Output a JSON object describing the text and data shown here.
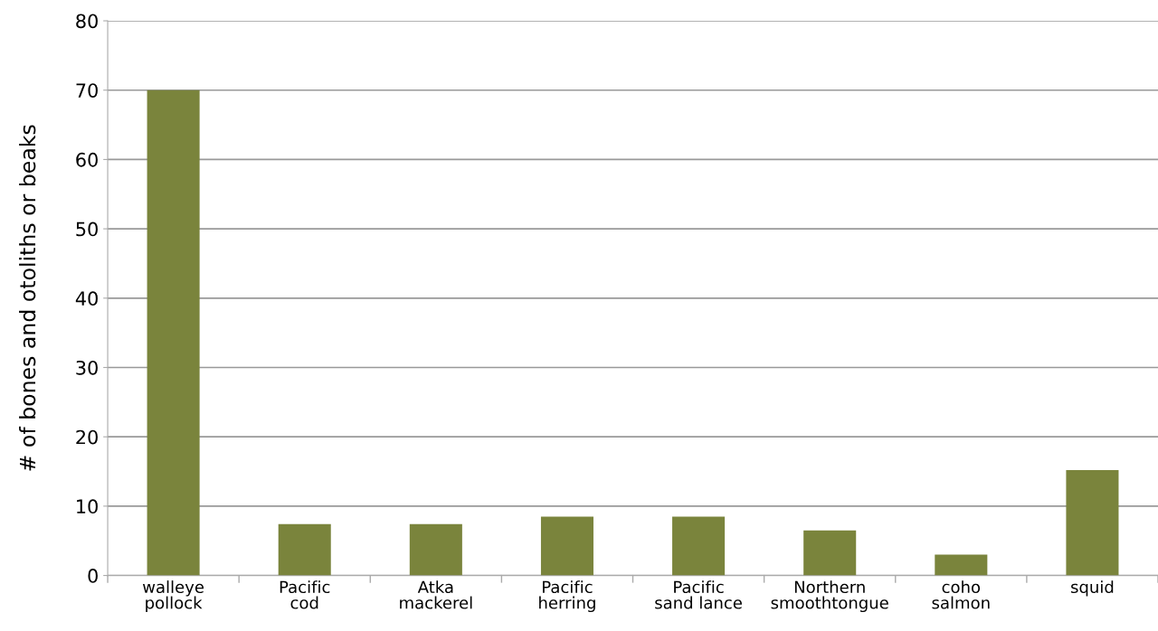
{
  "chart_data": {
    "type": "bar",
    "ylabel": "# of bones and otoliths or beaks",
    "categories": [
      "walleye\npollock",
      "Pacific\ncod",
      "Atka\nmackerel",
      "Pacific\nherring",
      "Pacific\nsand lance",
      "Northern\nsmoothtongue",
      "coho\nsalmon",
      "squid"
    ],
    "values": [
      70,
      7.4,
      7.4,
      8.5,
      8.5,
      6.5,
      3,
      15.2
    ],
    "color": "#7a843c",
    "ylim": [
      0,
      80
    ],
    "yticks": [
      0,
      10,
      20,
      30,
      40,
      50,
      60,
      70,
      80
    ],
    "grid": "y",
    "legend": false
  }
}
